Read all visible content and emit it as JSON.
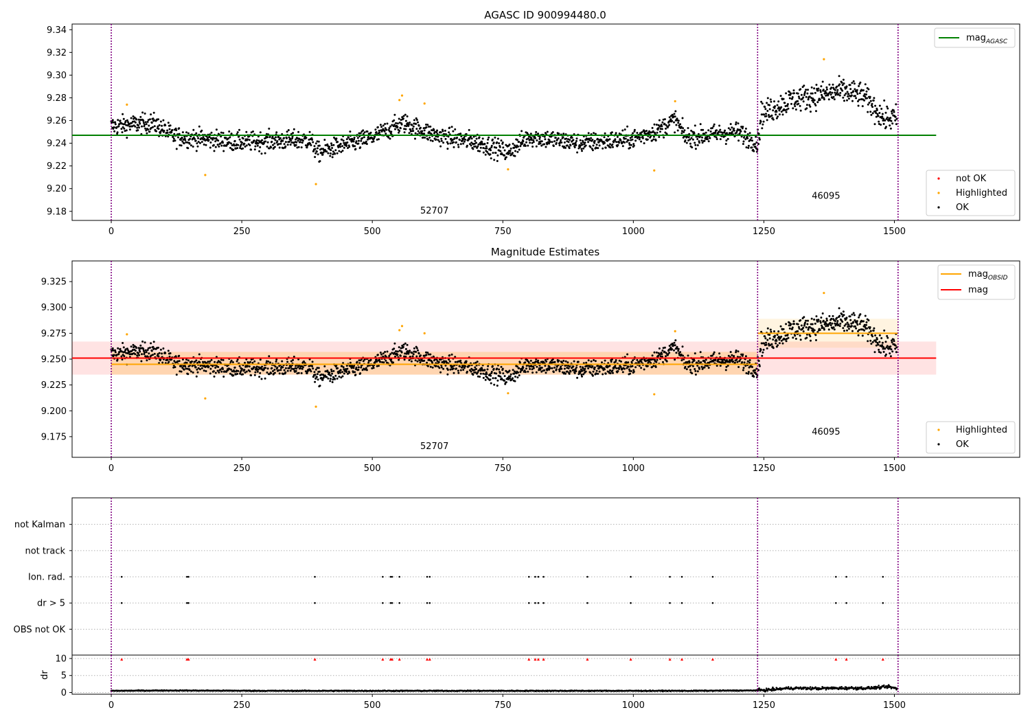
{
  "colors": {
    "ok": "#000000",
    "highlighted": "#ffa500",
    "not_ok": "#ff0000",
    "mag_agasc": "#008000",
    "mag_obsid": "#ffa500",
    "mag": "#ff0000",
    "boundary": "#800080",
    "grid": "#b0b0b0"
  },
  "chart_data": [
    {
      "type": "scatter",
      "title": "AGASC ID 900994480.0",
      "xlim": [
        -75,
        1740
      ],
      "ylim": [
        9.172,
        9.345
      ],
      "yticks": [
        "9.18",
        "9.20",
        "9.22",
        "9.24",
        "9.26",
        "9.28",
        "9.30",
        "9.32",
        "9.34"
      ],
      "xticks": [
        "0",
        "250",
        "500",
        "750",
        "1000",
        "1250",
        "1500"
      ],
      "vlines": [
        0,
        1238,
        1507
      ],
      "obsid_labels": [
        {
          "text": "52707",
          "x": 619,
          "y": 9.178
        },
        {
          "text": "46095",
          "x": 1369,
          "y": 9.191
        }
      ],
      "hlines": [
        {
          "name": "mag_AGASC",
          "y": 9.247,
          "x": [
            -75,
            1580
          ]
        }
      ],
      "highlighted_points": [
        [
          30,
          9.274
        ],
        [
          180,
          9.212
        ],
        [
          392,
          9.204
        ],
        [
          552,
          9.278
        ],
        [
          557,
          9.282
        ],
        [
          600,
          9.275
        ],
        [
          760,
          9.217
        ],
        [
          1040,
          9.216
        ],
        [
          1080,
          9.277
        ],
        [
          1365,
          9.314
        ]
      ],
      "legends": [
        {
          "position": "upper-right",
          "entries": [
            {
              "label": "mag",
              "sub": "AGASC"
            }
          ]
        },
        {
          "position": "lower-right",
          "entries": [
            {
              "label": "not OK"
            },
            {
              "label": "Highlighted"
            },
            {
              "label": "OK"
            }
          ]
        }
      ]
    },
    {
      "type": "scatter",
      "title": "Magnitude Estimates",
      "xlim": [
        -75,
        1740
      ],
      "ylim": [
        9.155,
        9.345
      ],
      "yticks": [
        "9.175",
        "9.200",
        "9.225",
        "9.250",
        "9.275",
        "9.300",
        "9.325"
      ],
      "xticks": [
        "0",
        "250",
        "500",
        "750",
        "1000",
        "1250",
        "1500"
      ],
      "vlines": [
        0,
        1238,
        1507
      ],
      "obsid_labels": [
        {
          "text": "52707",
          "x": 619,
          "y": 9.163
        },
        {
          "text": "46095",
          "x": 1369,
          "y": 9.177
        }
      ],
      "bands": [
        {
          "name": "mag",
          "x": [
            -75,
            1580
          ],
          "y": [
            9.235,
            9.267
          ]
        },
        {
          "name": "mag_OBSID_52707",
          "x": [
            0,
            1238
          ],
          "y": [
            9.235,
            9.257
          ]
        },
        {
          "name": "mag_OBSID_46095",
          "x": [
            1238,
            1507
          ],
          "y": [
            9.261,
            9.289
          ]
        }
      ],
      "hlines": [
        {
          "name": "mag",
          "y": 9.251,
          "x": [
            -75,
            1580
          ]
        },
        {
          "name": "mag_OBSID_52707",
          "y": 9.245,
          "x": [
            0,
            1238
          ]
        },
        {
          "name": "mag_OBSID_46095",
          "y": 9.275,
          "x": [
            1238,
            1507
          ]
        }
      ],
      "highlighted_points": [
        [
          30,
          9.274
        ],
        [
          180,
          9.212
        ],
        [
          392,
          9.204
        ],
        [
          552,
          9.278
        ],
        [
          557,
          9.282
        ],
        [
          600,
          9.275
        ],
        [
          760,
          9.217
        ],
        [
          1040,
          9.216
        ],
        [
          1080,
          9.277
        ],
        [
          1365,
          9.314
        ]
      ],
      "legends": [
        {
          "position": "upper-right",
          "entries": [
            {
              "label": "mag",
              "sub": "OBSID"
            },
            {
              "label": "mag"
            }
          ]
        },
        {
          "position": "lower-right",
          "entries": [
            {
              "label": "Highlighted"
            },
            {
              "label": "OK"
            }
          ]
        }
      ]
    },
    {
      "type": "scatter",
      "title": "",
      "xlim": [
        -75,
        1740
      ],
      "categories": [
        "OBS not OK",
        "dr > 5",
        "Ion. rad.",
        "not track",
        "not Kalman"
      ],
      "vlines": [
        0,
        1238,
        1507
      ],
      "flag_x": [
        20,
        145,
        148,
        390,
        520,
        535,
        538,
        552,
        605,
        610,
        800,
        812,
        818,
        828,
        912,
        995,
        1070,
        1093,
        1152,
        1388,
        1408,
        1478
      ],
      "flags": {
        "OBS not OK": false,
        "dr > 5": true,
        "Ion. rad.": true,
        "not track": false,
        "not Kalman": false
      }
    },
    {
      "type": "scatter",
      "title": "",
      "ylabel": "dr",
      "xlim": [
        -75,
        1740
      ],
      "ylim": [
        -0.5,
        11
      ],
      "yticks": [
        "0",
        "5",
        "10"
      ],
      "xticks": [
        "0",
        "250",
        "500",
        "750",
        "1000",
        "1250",
        "1500"
      ],
      "vlines": [
        0,
        1238,
        1507
      ],
      "dr_trend": [
        [
          0,
          0.5
        ],
        [
          100,
          0.6
        ],
        [
          300,
          0.5
        ],
        [
          500,
          0.5
        ],
        [
          700,
          0.5
        ],
        [
          900,
          0.5
        ],
        [
          1100,
          0.5
        ],
        [
          1230,
          0.6
        ],
        [
          1260,
          0.8
        ],
        [
          1300,
          1.3
        ],
        [
          1350,
          1.2
        ],
        [
          1400,
          1.3
        ],
        [
          1450,
          1.3
        ],
        [
          1490,
          1.7
        ],
        [
          1507,
          1.0
        ]
      ],
      "dr_flags_y": 9.8
    }
  ]
}
